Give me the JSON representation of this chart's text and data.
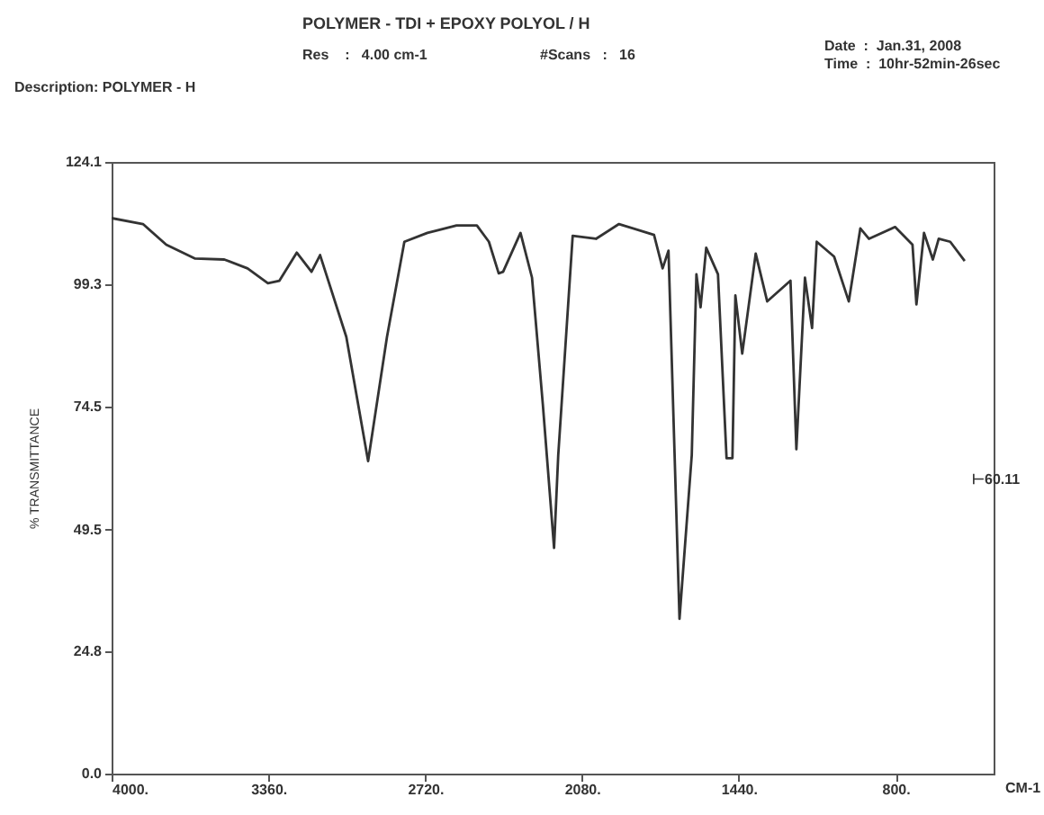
{
  "chart_data": {
    "type": "line",
    "title": "POLYMER - TDI + EPOXY POLYOL / H",
    "annotations": [
      "Res    :   4.00 cm-1",
      "#Scans   :   16",
      "Date  :  Jan.31, 2008",
      "Time  :  10hr-52min-26sec",
      "Description: POLYMER - H",
      "⊢60.11"
    ],
    "xlabel": "CM-1",
    "ylabel": "% TRANSMITTANCE",
    "xlim": [
      4000,
      400
    ],
    "ylim": [
      0,
      124.1
    ],
    "xticks": [
      {
        "value": 4000,
        "label": "4000."
      },
      {
        "value": 3360,
        "label": "3360."
      },
      {
        "value": 2720,
        "label": "2720."
      },
      {
        "value": 2080,
        "label": "2080."
      },
      {
        "value": 1440,
        "label": "1440."
      },
      {
        "value": 800,
        "label": "800."
      }
    ],
    "yticks": [
      {
        "value": 0,
        "label": "0.0"
      },
      24.8,
      49.5,
      74.5,
      99.3,
      124.1
    ],
    "grid": false,
    "marker": "none",
    "line_style": "solid",
    "series": [
      {
        "color": "#333333",
        "x": [
          4000,
          3872,
          3777,
          3659,
          3540,
          3445,
          3362,
          3315,
          3244,
          3184,
          3149,
          3042,
          2953,
          2876,
          2805,
          2711,
          2592,
          2509,
          2460,
          2420,
          2402,
          2331,
          2284,
          2240,
          2194,
          2177,
          2118,
          2023,
          1929,
          1786,
          1751,
          1727,
          1682,
          1632,
          1613,
          1596,
          1573,
          1525,
          1490,
          1478,
          1466,
          1454,
          1426,
          1371,
          1324,
          1229,
          1205,
          1170,
          1141,
          1122,
          1051,
          991,
          944,
          909,
          802,
          731,
          715,
          684,
          648,
          624,
          577,
          518
        ],
        "values": [
          112.7,
          111.5,
          107.3,
          104.5,
          104.3,
          102.5,
          99.5,
          100.0,
          105.7,
          101.8,
          105.2,
          88.6,
          63.4,
          88.6,
          107.9,
          109.7,
          111.2,
          111.2,
          107.9,
          101.5,
          101.8,
          109.7,
          100.6,
          75.0,
          45.8,
          64.6,
          109.1,
          108.5,
          111.5,
          109.3,
          102.5,
          106.1,
          31.4,
          64.6,
          101.3,
          94.6,
          106.7,
          101.3,
          64.0,
          64.0,
          64.0,
          97.0,
          85.2,
          105.5,
          95.8,
          100.0,
          65.8,
          100.6,
          90.4,
          107.9,
          104.9,
          95.8,
          110.6,
          108.5,
          110.9,
          107.3,
          95.2,
          109.7,
          104.3,
          108.5,
          107.9,
          104.0
        ]
      }
    ]
  }
}
